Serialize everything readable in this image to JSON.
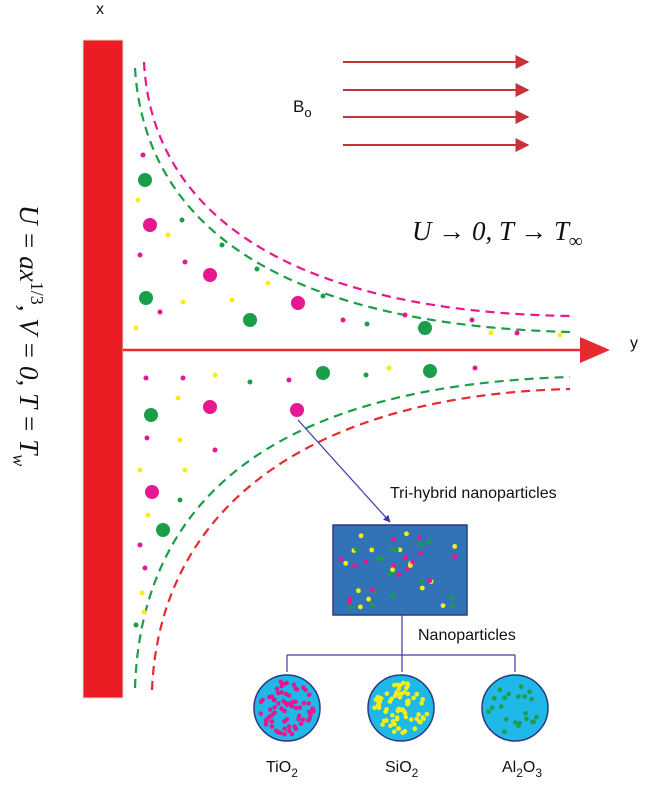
{
  "axes": {
    "x_label": "x",
    "y_label": "y"
  },
  "field_label": {
    "text": "B",
    "subscript": "o"
  },
  "far_condition": {
    "main": "U → 0, T → T",
    "subscript": "∞"
  },
  "wall_condition": {
    "part1": "U = ax",
    "superscript": "1/3",
    "part2": ", V = 0, T = T",
    "subscript": "w"
  },
  "box_label": "Tri-hybrid nanoparticles",
  "nanoparticles_label": "Nanoparticles",
  "particles": [
    {
      "base": "TiO",
      "sub": "2",
      "fill_color": "#20b8e8",
      "dot_color": "#e6178f"
    },
    {
      "base": "SiO",
      "sub": "2",
      "fill_color": "#20b8e8",
      "dot_color": "#f5ee14"
    },
    {
      "base": "Al",
      "sub": "2",
      "base2": "O",
      "sub2": "3",
      "fill_color": "#20b8e8",
      "dot_color": "#1a9e4a"
    }
  ],
  "colors": {
    "wall": "#ec1c24",
    "arrow": "#c8323c",
    "axis": "#e62a2f",
    "magenta": "#e6178f",
    "green": "#1a9e4a",
    "yellow": "#f5ee14",
    "box_fill": "#3273b8",
    "connector": "#3a3aa8"
  }
}
